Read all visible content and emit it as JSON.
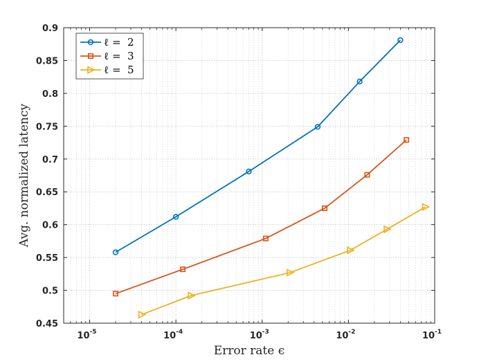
{
  "chart_data": {
    "type": "line",
    "xscale": "log",
    "xlabel": "Error rate ϵ",
    "ylabel": "Avg. normalized latency",
    "xlim": [
      5e-06,
      0.1
    ],
    "ylim": [
      0.45,
      0.9
    ],
    "grid": true,
    "legend_position": "top-left",
    "x_ticks": [
      {
        "base": "10",
        "exp": "-5",
        "value": 1e-05
      },
      {
        "base": "10",
        "exp": "-4",
        "value": 0.0001
      },
      {
        "base": "10",
        "exp": "-3",
        "value": 0.001
      },
      {
        "base": "10",
        "exp": "-2",
        "value": 0.01
      },
      {
        "base": "10",
        "exp": "-1",
        "value": 0.1
      }
    ],
    "y_ticks": [
      "0.45",
      "0.5",
      "0.55",
      "0.6",
      "0.65",
      "0.7",
      "0.75",
      "0.8",
      "0.85",
      "0.9"
    ],
    "series": [
      {
        "name": "ℓ =  2",
        "color": "#0072BD",
        "marker": "circle",
        "x": [
          2e-05,
          0.0001,
          0.0007,
          0.0044,
          0.0135,
          0.04
        ],
        "y": [
          0.558,
          0.612,
          0.681,
          0.749,
          0.818,
          0.881
        ]
      },
      {
        "name": "ℓ =  3",
        "color": "#D95319",
        "marker": "square",
        "x": [
          2e-05,
          0.00012,
          0.0011,
          0.0053,
          0.0165,
          0.047
        ],
        "y": [
          0.495,
          0.532,
          0.579,
          0.625,
          0.676,
          0.729
        ]
      },
      {
        "name": "ℓ =  5",
        "color": "#EDB120",
        "marker": "triangle-right",
        "x": [
          4e-05,
          0.00015,
          0.0021,
          0.0105,
          0.028,
          0.078
        ],
        "y": [
          0.463,
          0.492,
          0.527,
          0.561,
          0.593,
          0.627
        ]
      }
    ]
  }
}
